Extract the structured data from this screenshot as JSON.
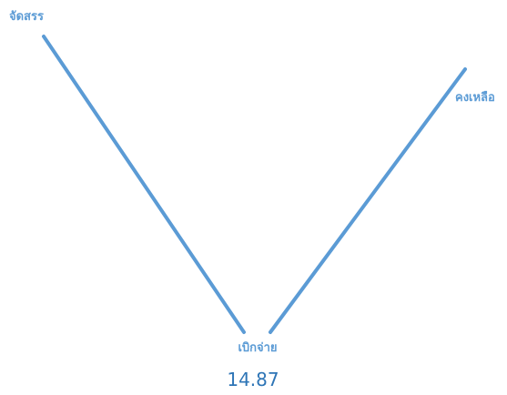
{
  "chart_data": {
    "type": "radar",
    "categories": [
      "จัดสรร",
      "คงเหลือ",
      "เบิกจ่าย"
    ],
    "series": [
      {
        "values": [
          100,
          100,
          14.87
        ]
      }
    ],
    "value_label": "14.87",
    "colors": {
      "line": "#5b9bd5",
      "label": "#5b9bd5",
      "value": "#2e75b6"
    }
  }
}
